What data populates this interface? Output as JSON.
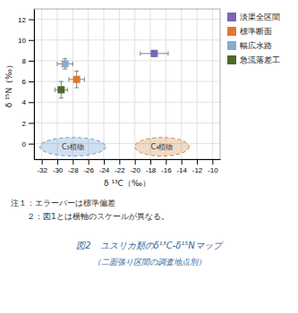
{
  "chart_data": {
    "type": "scatter",
    "title": "図2　ユスリカ類のδ¹³C-δ¹⁵Nマップ",
    "subtitle": "（二面張り区間の調査地点別）",
    "x_label": "δ ¹³C（‰）",
    "y_label": "δ ¹⁵N（‰）",
    "xlim": [
      -33,
      -9
    ],
    "ylim": [
      -1.5,
      13
    ],
    "xticks": [
      -32,
      -30,
      -28,
      -26,
      -24,
      -22,
      -20,
      -18,
      -16,
      -14,
      -12,
      -10
    ],
    "yticks": [
      0,
      2,
      4,
      6,
      8,
      10,
      12
    ],
    "grid": true,
    "legend": "right",
    "series": [
      {
        "name": "淡渠全区間",
        "color": "#7B68B0",
        "marker": "square",
        "x": [
          -17.5
        ],
        "values": [
          8.7
        ],
        "xerr": [
          1.8
        ],
        "yerr": [
          0.3
        ]
      },
      {
        "name": "標準断面",
        "color": "#E07830",
        "marker": "square",
        "x": [
          -27.5
        ],
        "values": [
          6.2
        ],
        "xerr": [
          1.0
        ],
        "yerr": [
          0.8
        ]
      },
      {
        "name": "幅広水路",
        "color": "#88AACC",
        "marker": "square",
        "x": [
          -29.0
        ],
        "values": [
          7.7
        ],
        "xerr": [
          1.0
        ],
        "yerr": [
          0.5
        ]
      },
      {
        "name": "急流落差工",
        "color": "#4A6A28",
        "marker": "square",
        "x": [
          -29.5
        ],
        "values": [
          5.2
        ],
        "xerr": [
          0.8
        ],
        "yerr": [
          0.8
        ]
      }
    ],
    "regions": [
      {
        "label": "C₃植物",
        "cx": -28.0,
        "cy": -0.3,
        "width": 8.5,
        "height": 1.8,
        "color": "#6699CC",
        "line_style": "dashed"
      },
      {
        "label": "C₄植物",
        "cx": -16.5,
        "cy": -0.3,
        "width": 7.0,
        "height": 1.8,
        "color": "#CC8844",
        "line_style": "dashed"
      }
    ],
    "notes": [
      "注１：エラーバーは標準偏差",
      "２：図1とは横軸のスケールが異なる。"
    ]
  }
}
